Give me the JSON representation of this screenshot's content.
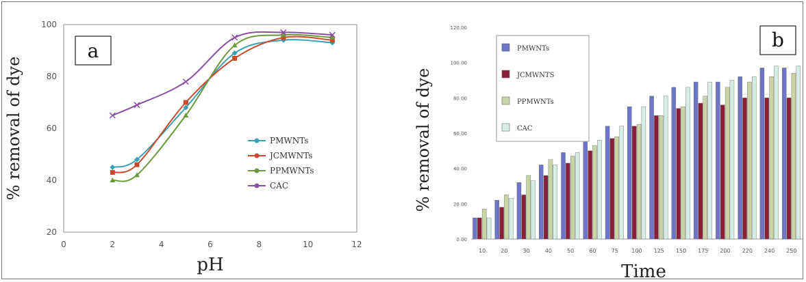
{
  "chart_data": [
    {
      "panel": "a",
      "type": "line",
      "xlabel": "pH",
      "ylabel": "% removal of dye",
      "xlim": [
        0,
        12
      ],
      "ylim": [
        20,
        100
      ],
      "xticks": [
        0,
        2,
        4,
        6,
        8,
        10,
        12
      ],
      "yticks": [
        20,
        40,
        60,
        80,
        100
      ],
      "x": [
        2,
        3,
        5,
        7,
        9,
        11
      ],
      "legend_position": "center-right",
      "series": [
        {
          "name": "PMWNTs",
          "color": "#3b9fb5",
          "marker": "diamond",
          "values": [
            45,
            48,
            68,
            89,
            94,
            93
          ]
        },
        {
          "name": "JCMWNTs",
          "color": "#c84a2a",
          "marker": "square",
          "values": [
            43,
            46,
            70,
            87,
            95,
            94
          ]
        },
        {
          "name": "PPMWNTs",
          "color": "#6b9a3c",
          "marker": "triangle",
          "values": [
            40,
            42,
            65,
            92,
            96,
            95
          ]
        },
        {
          "name": "CAC",
          "color": "#8a4fa0",
          "marker": "cross",
          "values": [
            65,
            69,
            78,
            95,
            97,
            96
          ]
        }
      ]
    },
    {
      "panel": "b",
      "type": "bar",
      "xlabel": "Time",
      "ylabel": "% removal of dye",
      "ylim": [
        0,
        120
      ],
      "yticks": [
        "0.00",
        "20.00",
        "40.00",
        "60.00",
        "80.00",
        "100.00",
        "120.00"
      ],
      "categories": [
        "10",
        "20",
        "30",
        "40",
        "50",
        "60",
        "75",
        "100",
        "125",
        "150",
        "175",
        "200",
        "220",
        "240",
        "250"
      ],
      "legend_position": "top-left",
      "series": [
        {
          "name": "PMWNTs",
          "color": "#6e74c8",
          "values": [
            12,
            22,
            32,
            42,
            49,
            55,
            64,
            75,
            81,
            86,
            89,
            89,
            92,
            97,
            97
          ]
        },
        {
          "name": "JCMWNTS",
          "color": "#8a1f3a",
          "values": [
            12,
            18,
            25,
            36,
            43,
            50,
            57,
            64,
            70,
            74,
            77,
            76,
            80,
            80,
            80
          ]
        },
        {
          "name": "PPMWNTs",
          "color": "#c9d4a6",
          "values": [
            17,
            25,
            36,
            45,
            47,
            53,
            58,
            65,
            70,
            75,
            81,
            86,
            89,
            92,
            94
          ]
        },
        {
          "name": "CAC",
          "color": "#d6ece6",
          "values": [
            12,
            23,
            33,
            42,
            49,
            56,
            64,
            75,
            81,
            86,
            89,
            90,
            92,
            98,
            98
          ]
        }
      ]
    }
  ]
}
